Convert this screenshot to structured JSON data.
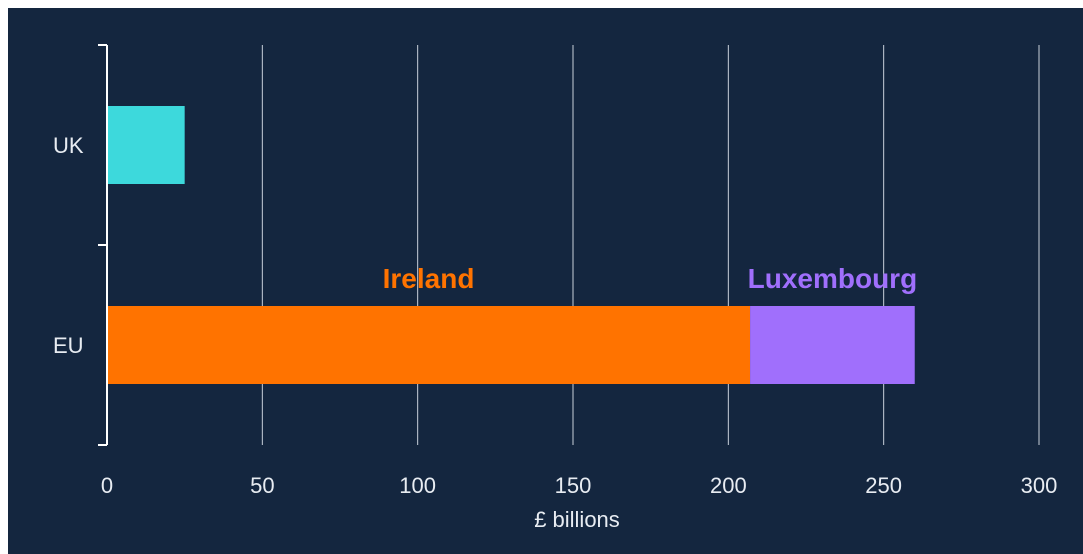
{
  "chart_data": {
    "type": "bar",
    "orientation": "horizontal",
    "stacked": true,
    "categories": [
      "UK",
      "EU"
    ],
    "series": [
      {
        "name": "",
        "values": [
          25,
          null
        ],
        "color": "#3dd9dc"
      },
      {
        "name": "Ireland",
        "values": [
          null,
          207
        ],
        "color": "#ff7300"
      },
      {
        "name": "Luxembourg",
        "values": [
          null,
          53
        ],
        "color": "#a06ffc"
      }
    ],
    "xlabel": "£ billions",
    "xlim": [
      0,
      300
    ],
    "xticks": [
      "0",
      "50",
      "100",
      "150",
      "200",
      "250",
      "300"
    ],
    "grid": "vertical",
    "background": "#14263f"
  }
}
